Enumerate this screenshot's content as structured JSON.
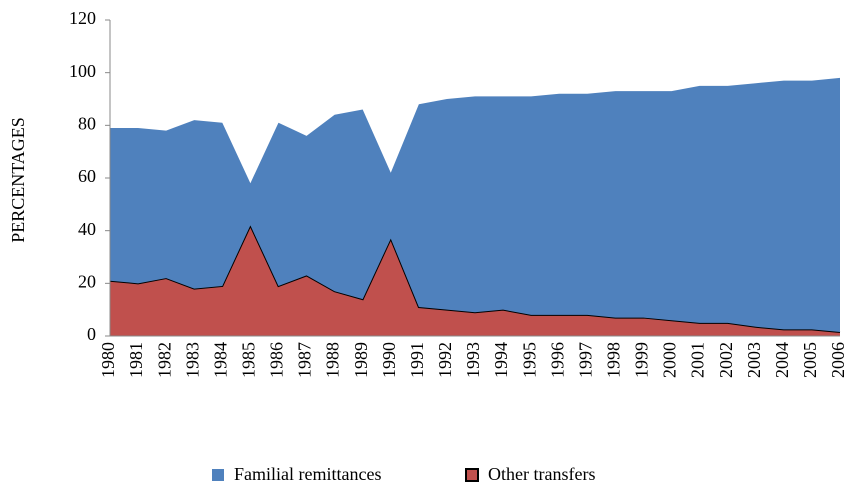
{
  "chart_data": {
    "type": "stacked-area",
    "y_label": "PERCENTAGES",
    "categories": [
      "1980",
      "1981",
      "1982",
      "1983",
      "1984",
      "1985",
      "1986",
      "1987",
      "1988",
      "1989",
      "1990",
      "1991",
      "1992",
      "1993",
      "1994",
      "1995",
      "1996",
      "1997",
      "1998",
      "1999",
      "2000",
      "2001",
      "2002",
      "2003",
      "2004",
      "2005",
      "2006"
    ],
    "series": [
      {
        "name": "Familial remittances",
        "color": "#4f81bd",
        "values": [
          58,
          59,
          56,
          64,
          62,
          16,
          62,
          53,
          67,
          72,
          25,
          77,
          80,
          82,
          81,
          83,
          84,
          84,
          86,
          86,
          87,
          90,
          90,
          92.5,
          94.5,
          94.5,
          96.5
        ]
      },
      {
        "name": "Other transfers",
        "color": "#c0504d",
        "values": [
          21,
          20,
          22,
          18,
          19,
          42,
          19,
          23,
          17,
          14,
          37,
          11,
          10,
          9,
          10,
          8,
          8,
          8,
          7,
          7,
          6,
          5,
          5,
          3.5,
          2.5,
          2.5,
          1.5
        ]
      }
    ],
    "stack_order": [
      1,
      0
    ],
    "ylim": [
      0,
      120
    ],
    "yticks": [
      0,
      20,
      40,
      60,
      80,
      100,
      120
    ],
    "grid": false,
    "legend": "bottom"
  }
}
